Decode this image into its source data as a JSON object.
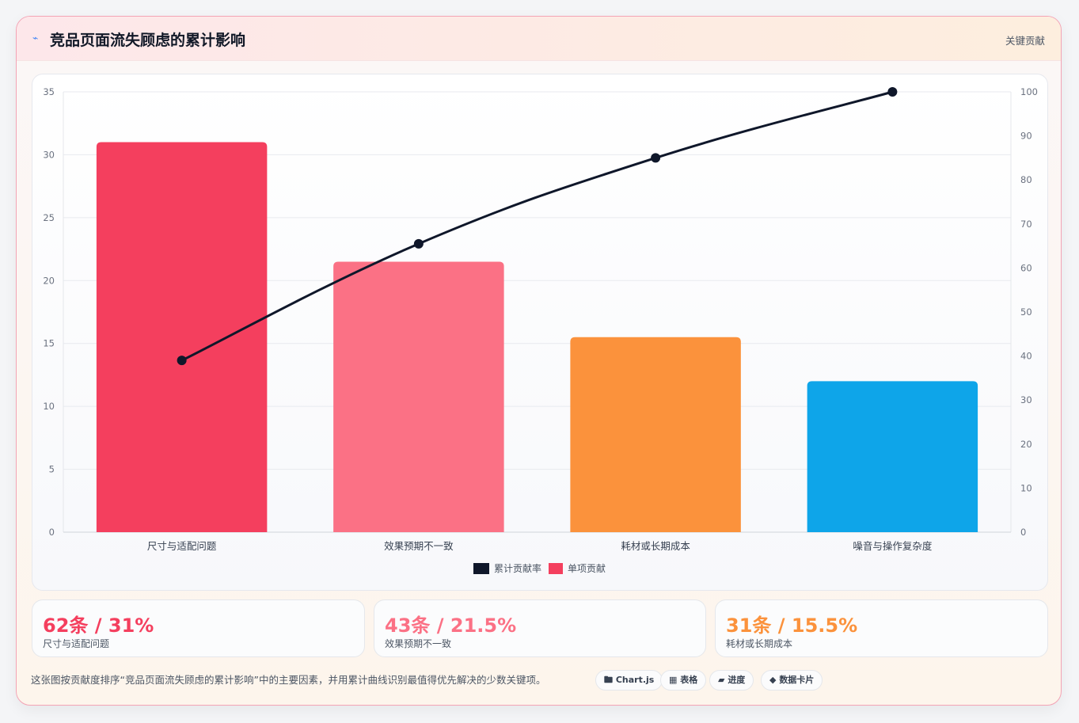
{
  "header": {
    "icon": "lightning-icon",
    "title": "竞品页面流失顾虑的累计影响",
    "badge": "关键贡献"
  },
  "chart_data": {
    "type": "bar",
    "categories": [
      "尺寸与适配问题",
      "效果预期不一致",
      "耗材或长期成本",
      "噪音与操作复杂度"
    ],
    "series": [
      {
        "name": "单项贡献",
        "type": "bar",
        "axis": "left",
        "values": [
          31,
          21.5,
          15.5,
          12
        ]
      },
      {
        "name": "累计贡献率",
        "type": "line",
        "axis": "right",
        "values": [
          39,
          65.5,
          85,
          100
        ]
      }
    ],
    "y_left": {
      "min": 0,
      "max": 35,
      "ticks": [
        0,
        5,
        10,
        15,
        20,
        25,
        30,
        35
      ]
    },
    "y_right": {
      "min": 0,
      "max": 100,
      "ticks": [
        0,
        10,
        20,
        30,
        40,
        50,
        60,
        70,
        80,
        90,
        100
      ]
    },
    "bar_colors": [
      "#f43f5e",
      "#fb7185",
      "#fb923c",
      "#0ea5e9"
    ],
    "line_color": "#0f172a",
    "grid": true,
    "legend_position": "bottom"
  },
  "stats": [
    {
      "value": "62条 / 31%",
      "label": "尺寸与适配问题",
      "color": "#f43f5e"
    },
    {
      "value": "43条 / 21.5%",
      "label": "效果预期不一致",
      "color": "#fb7185"
    },
    {
      "value": "31条 / 15.5%",
      "label": "耗材或长期成本",
      "color": "#fb923c"
    }
  ],
  "footnote": "这张图按贡献度排序“竞品页面流失顾虑的累计影响”中的主要因素，并用累计曲线识别最值得优先解决的少数关键项。",
  "tags": [
    {
      "icon": "chart-icon",
      "label": "Chart.js"
    },
    {
      "icon": "table-icon",
      "label": "表格"
    },
    {
      "icon": "progress-icon",
      "label": "进度"
    },
    {
      "icon": "card-icon",
      "label": "数据卡片"
    }
  ]
}
